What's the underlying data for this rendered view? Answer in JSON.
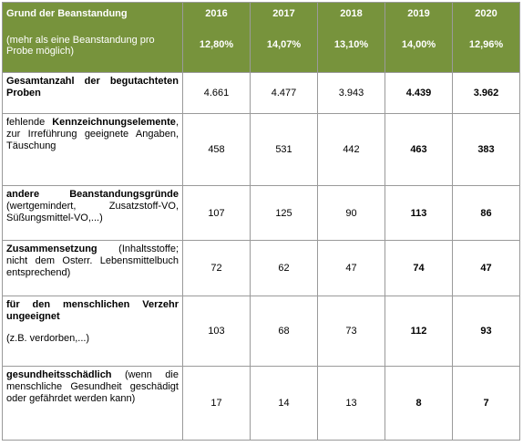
{
  "header": {
    "title": "Grund der Beanstandung",
    "note": "(mehr als eine Beanstandung pro Probe möglich)",
    "years": [
      {
        "year": "2016",
        "rate": "12,80%"
      },
      {
        "year": "2017",
        "rate": "14,07%"
      },
      {
        "year": "2018",
        "rate": "13,10%"
      },
      {
        "year": "2019",
        "rate": "14,00%"
      },
      {
        "year": "2020",
        "rate": "12,96%"
      }
    ]
  },
  "rows": [
    {
      "label": [
        [
          {
            "text": "Gesamtanzahl der begutachteten Proben",
            "bold": true
          }
        ]
      ],
      "values": [
        {
          "text": "4.661",
          "bold": false
        },
        {
          "text": "4.477",
          "bold": false
        },
        {
          "text": "3.943",
          "bold": false
        },
        {
          "text": "4.439",
          "bold": true
        },
        {
          "text": "3.962",
          "bold": true
        }
      ]
    },
    {
      "label": [
        [
          {
            "text": "fehlende ",
            "bold": false
          },
          {
            "text": "Kennzeichnungselemente",
            "bold": true
          },
          {
            "text": ", zur Irreführung geeignete Angaben, Täuschung",
            "bold": false
          }
        ]
      ],
      "values": [
        {
          "text": "458",
          "bold": false
        },
        {
          "text": "531",
          "bold": false
        },
        {
          "text": "442",
          "bold": false
        },
        {
          "text": "463",
          "bold": true
        },
        {
          "text": "383",
          "bold": true
        }
      ]
    },
    {
      "label": [
        [
          {
            "text": "andere Beanstandungsgründe",
            "bold": true
          },
          {
            "text": " (wertgemindert, Zusatzstoff-VO, Süßungsmittel-VO,...)",
            "bold": false
          }
        ]
      ],
      "values": [
        {
          "text": "107",
          "bold": false
        },
        {
          "text": "125",
          "bold": false
        },
        {
          "text": "90",
          "bold": false
        },
        {
          "text": "113",
          "bold": true
        },
        {
          "text": "86",
          "bold": true
        }
      ]
    },
    {
      "label": [
        [
          {
            "text": "Zusammensetzung",
            "bold": true
          },
          {
            "text": " (Inhaltsstoffe; nicht dem Osterr. Lebensmittelbuch entsprechend)",
            "bold": false
          }
        ]
      ],
      "values": [
        {
          "text": "72",
          "bold": false
        },
        {
          "text": "62",
          "bold": false
        },
        {
          "text": "47",
          "bold": false
        },
        {
          "text": "74",
          "bold": true
        },
        {
          "text": "47",
          "bold": true
        }
      ]
    },
    {
      "label": [
        [
          {
            "text": "für den menschlichen Verzehr ungeeignet",
            "bold": true
          }
        ],
        [
          {
            "text": "(z.B. verdorben,...)",
            "bold": false
          }
        ]
      ],
      "values": [
        {
          "text": "103",
          "bold": false
        },
        {
          "text": "68",
          "bold": false
        },
        {
          "text": "73",
          "bold": false
        },
        {
          "text": "112",
          "bold": true
        },
        {
          "text": "93",
          "bold": true
        }
      ]
    },
    {
      "label": [
        [
          {
            "text": "gesundheitsschädlich",
            "bold": true
          },
          {
            "text": " (wenn die menschliche Gesundheit geschädigt oder gefährdet werden kann)",
            "bold": false
          }
        ]
      ],
      "values": [
        {
          "text": "17",
          "bold": false
        },
        {
          "text": "14",
          "bold": false
        },
        {
          "text": "13",
          "bold": false
        },
        {
          "text": "8",
          "bold": true
        },
        {
          "text": "7",
          "bold": true
        }
      ]
    }
  ]
}
